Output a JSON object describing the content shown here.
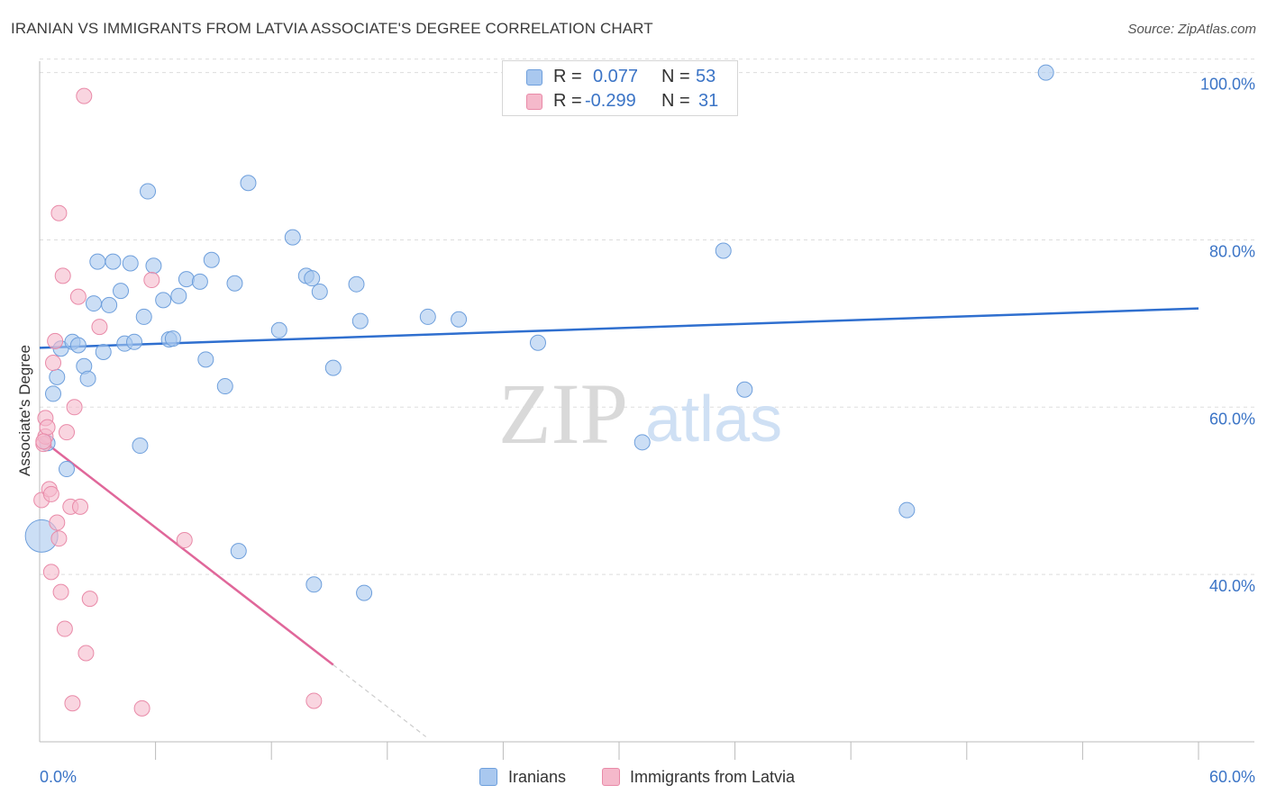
{
  "header": {
    "title": "IRANIAN VS IMMIGRANTS FROM LATVIA ASSOCIATE'S DEGREE CORRELATION CHART",
    "source": "Source: ZipAtlas.com"
  },
  "watermark": {
    "zip": "ZIP",
    "atlas": "atlas"
  },
  "stats": {
    "rows": [
      {
        "r_label": "R =",
        "r_value": "0.077",
        "n_label": "N =",
        "n_value": "53",
        "color": "#a9c8ef"
      },
      {
        "r_label": "R =",
        "r_value": "-0.299",
        "n_label": "N =",
        "n_value": "31",
        "color": "#f5b9cb"
      }
    ]
  },
  "legend": {
    "items": [
      {
        "label": "Iranians",
        "color": "#a9c8ef"
      },
      {
        "label": "Immigrants from Latvia",
        "color": "#f5b9cb"
      }
    ]
  },
  "colors": {
    "blue_fill": "#a9c8ef",
    "blue_stroke": "#6e9fdc",
    "blue_line": "#2f6fcf",
    "pink_fill": "#f5b9cb",
    "pink_stroke": "#e98aa8",
    "pink_line": "#e0679a",
    "tick_label": "#3b74c6",
    "grid": "#dddddd",
    "axis": "#bbbbbb"
  },
  "chart_data": {
    "type": "scatter",
    "title": "IRANIAN VS IMMIGRANTS FROM LATVIA ASSOCIATE'S DEGREE CORRELATION CHART",
    "xlabel": "",
    "ylabel": "Associate's Degree",
    "xlim": [
      0,
      60
    ],
    "ylim": [
      20,
      102
    ],
    "x_tick_labels": [
      "0.0%",
      "60.0%"
    ],
    "y_ticks": [
      40,
      60,
      80,
      100
    ],
    "y_tick_labels": [
      "40.0%",
      "60.0%",
      "80.0%",
      "100.0%"
    ],
    "grid": true,
    "legend_position": "bottom",
    "series": [
      {
        "name": "Iranians",
        "points": [
          [
            0.1,
            44.6
          ],
          [
            0.4,
            55.7
          ],
          [
            0.7,
            61.6
          ],
          [
            0.9,
            63.6
          ],
          [
            1.1,
            67.0
          ],
          [
            1.4,
            52.6
          ],
          [
            1.7,
            67.8
          ],
          [
            2.0,
            67.4
          ],
          [
            2.3,
            64.9
          ],
          [
            2.5,
            63.4
          ],
          [
            2.8,
            72.4
          ],
          [
            3.0,
            77.4
          ],
          [
            3.3,
            66.6
          ],
          [
            3.6,
            72.2
          ],
          [
            3.8,
            77.4
          ],
          [
            4.2,
            73.9
          ],
          [
            4.4,
            67.6
          ],
          [
            4.7,
            77.2
          ],
          [
            4.9,
            67.8
          ],
          [
            5.2,
            55.4
          ],
          [
            5.4,
            70.8
          ],
          [
            5.6,
            85.8
          ],
          [
            5.9,
            76.9
          ],
          [
            6.4,
            72.8
          ],
          [
            6.7,
            68.1
          ],
          [
            6.9,
            68.2
          ],
          [
            7.2,
            73.3
          ],
          [
            7.6,
            75.3
          ],
          [
            8.3,
            75.0
          ],
          [
            8.6,
            65.7
          ],
          [
            8.9,
            77.6
          ],
          [
            9.6,
            62.5
          ],
          [
            10.1,
            74.8
          ],
          [
            10.3,
            42.8
          ],
          [
            10.8,
            86.8
          ],
          [
            12.4,
            69.2
          ],
          [
            13.1,
            80.3
          ],
          [
            13.8,
            75.7
          ],
          [
            14.1,
            75.4
          ],
          [
            14.2,
            38.8
          ],
          [
            14.5,
            73.8
          ],
          [
            15.2,
            64.7
          ],
          [
            16.4,
            74.7
          ],
          [
            16.6,
            70.3
          ],
          [
            16.8,
            37.8
          ],
          [
            20.1,
            70.8
          ],
          [
            21.7,
            70.5
          ],
          [
            25.8,
            67.7
          ],
          [
            31.2,
            55.8
          ],
          [
            35.4,
            78.7
          ],
          [
            36.5,
            62.1
          ],
          [
            44.9,
            47.7
          ],
          [
            52.1,
            100.0
          ]
        ]
      },
      {
        "name": "Immigrants from Latvia",
        "points": [
          [
            0.1,
            48.9
          ],
          [
            0.2,
            55.6
          ],
          [
            0.3,
            58.7
          ],
          [
            0.3,
            56.5
          ],
          [
            0.4,
            57.6
          ],
          [
            0.5,
            50.2
          ],
          [
            0.6,
            49.6
          ],
          [
            0.6,
            40.3
          ],
          [
            0.7,
            65.3
          ],
          [
            0.8,
            67.9
          ],
          [
            0.9,
            46.2
          ],
          [
            1.0,
            44.3
          ],
          [
            1.0,
            83.2
          ],
          [
            1.1,
            37.9
          ],
          [
            1.2,
            75.7
          ],
          [
            1.3,
            33.5
          ],
          [
            1.4,
            57.0
          ],
          [
            1.6,
            48.1
          ],
          [
            1.7,
            24.6
          ],
          [
            1.8,
            60.0
          ],
          [
            2.0,
            73.2
          ],
          [
            2.1,
            48.1
          ],
          [
            2.3,
            97.2
          ],
          [
            2.4,
            30.6
          ],
          [
            2.6,
            37.1
          ],
          [
            3.1,
            69.6
          ],
          [
            5.3,
            24.0
          ],
          [
            5.8,
            75.2
          ],
          [
            7.5,
            44.1
          ],
          [
            14.2,
            24.9
          ],
          [
            0.2,
            55.9
          ]
        ]
      }
    ],
    "trend_lines": [
      {
        "name": "Iranians",
        "x": [
          0,
          60
        ],
        "y": [
          67.1,
          71.8
        ]
      },
      {
        "name": "Immigrants from Latvia",
        "x": [
          0,
          15.2
        ],
        "y": [
          56.3,
          29.2
        ],
        "dashed_extension": {
          "x": [
            15.2,
            20
          ],
          "y": [
            29.2,
            20.6
          ]
        }
      }
    ]
  }
}
